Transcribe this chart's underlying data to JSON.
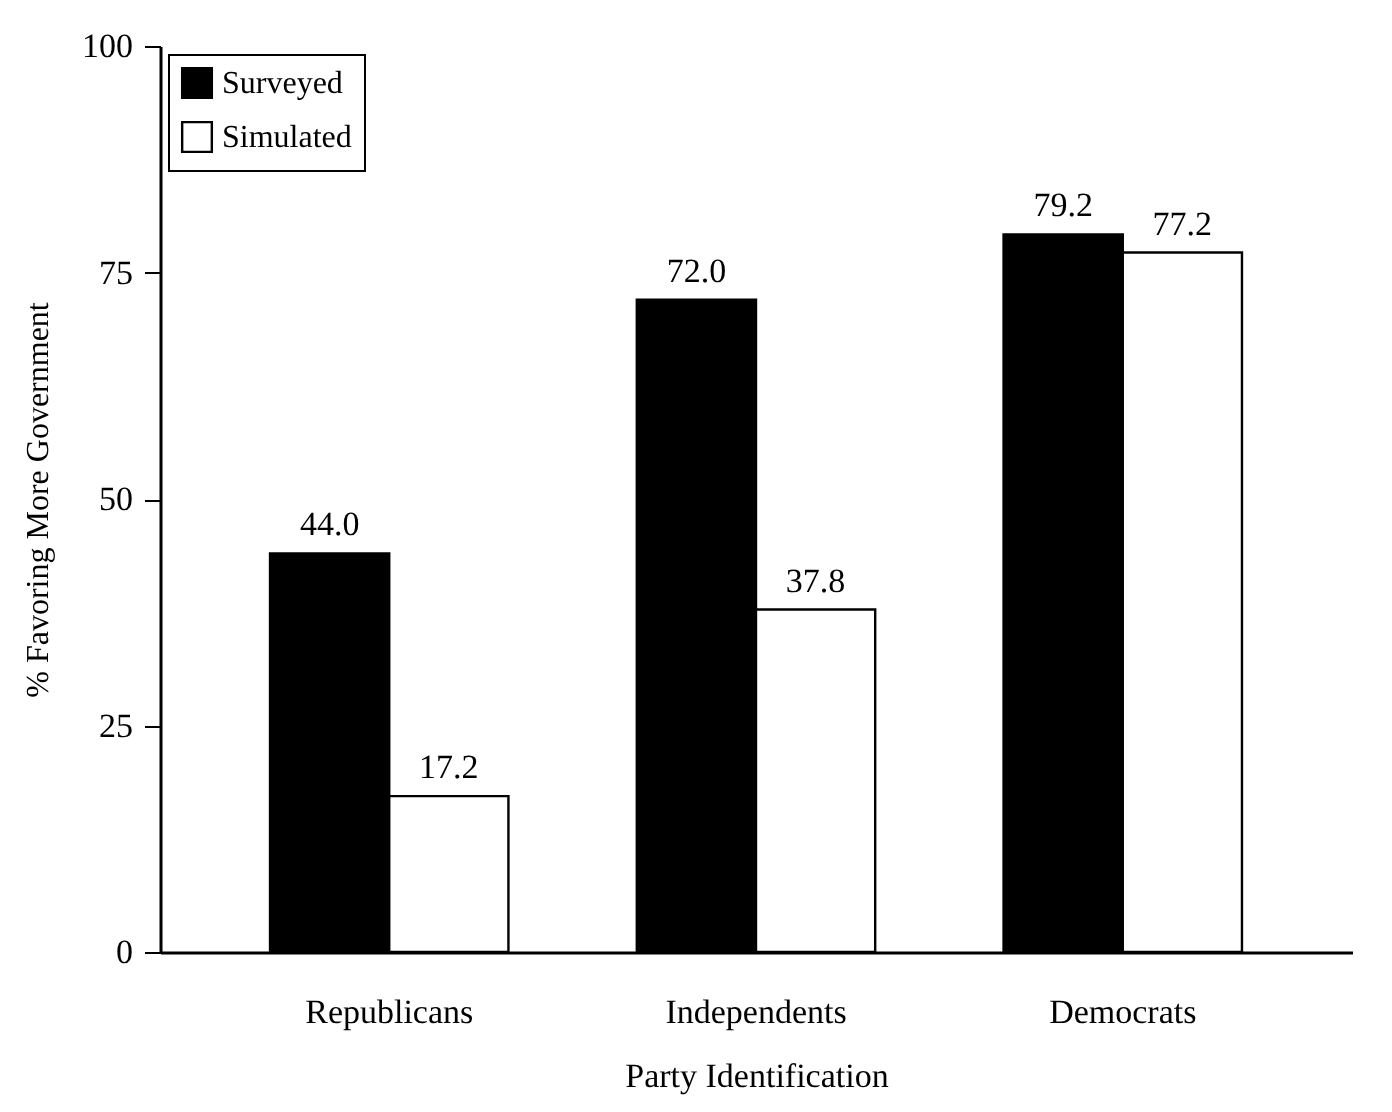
{
  "chart_data": {
    "type": "bar",
    "xlabel": "Party Identification",
    "ylabel": "% Favoring More Government",
    "categories": [
      "Republicans",
      "Independents",
      "Democrats"
    ],
    "series": [
      {
        "name": "Surveyed",
        "color": "#000000",
        "values": [
          44.0,
          72.0,
          79.2
        ],
        "value_labels": [
          "44.0",
          "72.0",
          "79.2"
        ]
      },
      {
        "name": "Simulated",
        "color": "#ffffff",
        "values": [
          17.2,
          37.8,
          77.2
        ],
        "value_labels": [
          "17.2",
          "37.8",
          "77.2"
        ]
      }
    ],
    "ylim": [
      0,
      100
    ],
    "yticks": [
      0,
      25,
      50,
      75,
      100
    ],
    "grid": false,
    "legend": "top left"
  }
}
